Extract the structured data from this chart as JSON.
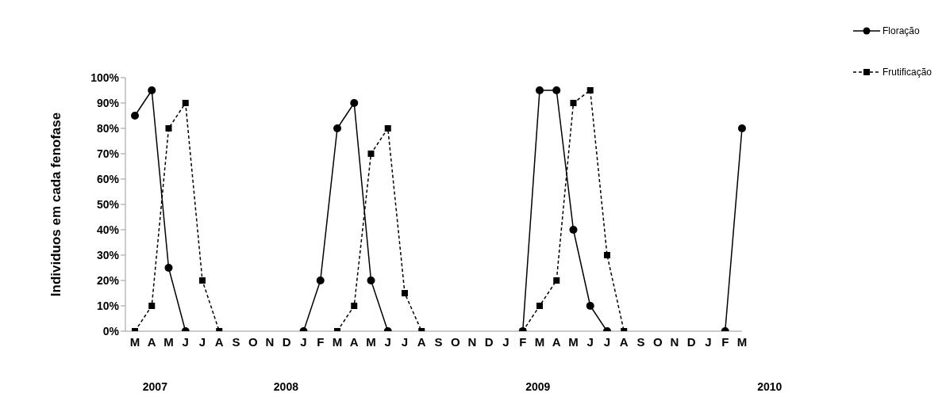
{
  "chart_data": {
    "type": "line",
    "ylabel": "Individuos em cada fenofase",
    "categories": [
      "M",
      "A",
      "M",
      "J",
      "J",
      "A",
      "S",
      "O",
      "N",
      "D",
      "J",
      "F",
      "M",
      "A",
      "M",
      "J",
      "J",
      "A",
      "S",
      "O",
      "N",
      "D",
      "J",
      "F",
      "M",
      "A",
      "M",
      "J",
      "J",
      "A",
      "S",
      "O",
      "N",
      "D",
      "J",
      "F",
      "M"
    ],
    "series": [
      {
        "name": "Floração",
        "color": "#000000",
        "marker": "circle",
        "line_style": "solid",
        "values": [
          85,
          95,
          25,
          0,
          null,
          null,
          null,
          null,
          null,
          null,
          0,
          20,
          80,
          90,
          20,
          0,
          null,
          null,
          null,
          null,
          null,
          null,
          null,
          0,
          95,
          95,
          40,
          10,
          0,
          null,
          null,
          null,
          null,
          null,
          null,
          0,
          80
        ]
      },
      {
        "name": "Frutificação",
        "color": "#000000",
        "marker": "square",
        "line_style": "dashed",
        "values": [
          0,
          10,
          80,
          90,
          20,
          0,
          null,
          null,
          null,
          null,
          null,
          null,
          0,
          10,
          70,
          80,
          15,
          0,
          null,
          null,
          null,
          null,
          null,
          0,
          10,
          20,
          90,
          95,
          30,
          0,
          null,
          null,
          null,
          null,
          null,
          null,
          null
        ]
      }
    ],
    "ylim": [
      0,
      100
    ],
    "yticks": [
      {
        "value": 0,
        "label": "0%"
      },
      {
        "value": 10,
        "label": "10%"
      },
      {
        "value": 20,
        "label": "20%"
      },
      {
        "value": 30,
        "label": "30%"
      },
      {
        "value": 40,
        "label": "40%"
      },
      {
        "value": 50,
        "label": "50%"
      },
      {
        "value": 60,
        "label": "60%"
      },
      {
        "value": 70,
        "label": "70%"
      },
      {
        "value": 80,
        "label": "80%"
      },
      {
        "value": 90,
        "label": "90%"
      },
      {
        "value": 100,
        "label": "100%"
      }
    ],
    "grid": false,
    "legend": "top right",
    "annotations": [
      "2007",
      "2008",
      "2009",
      "2010"
    ]
  }
}
